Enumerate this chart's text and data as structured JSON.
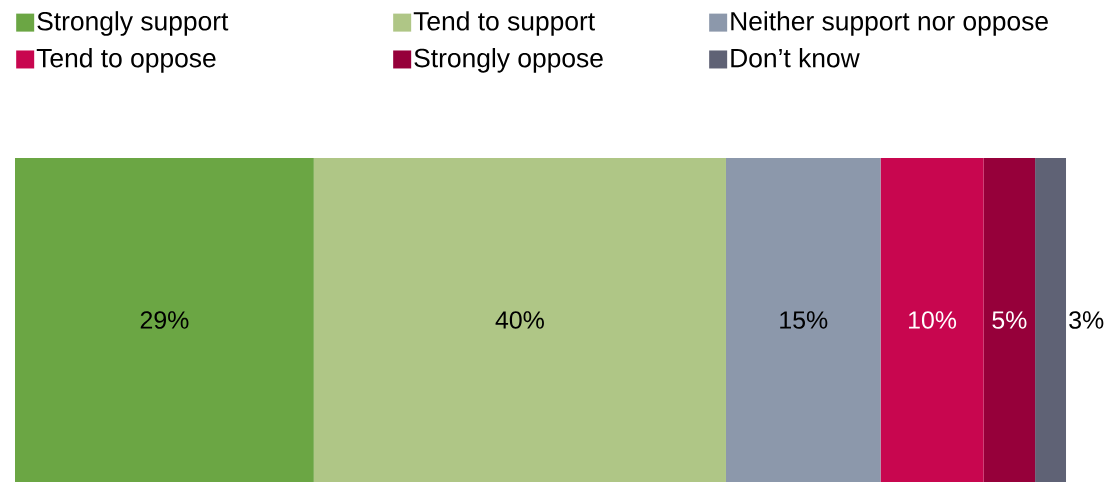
{
  "chart_data": {
    "type": "bar",
    "orientation": "horizontal",
    "stacked": true,
    "legend": "top left",
    "categories": [
      null
    ],
    "series": [
      {
        "name": "Strongly support",
        "color": "#6ba644",
        "values": [
          29
        ],
        "value_labels": [
          "29%"
        ]
      },
      {
        "name": "Tend to support",
        "color": "#afc686",
        "values": [
          40
        ],
        "value_labels": [
          "40%"
        ]
      },
      {
        "name": "Neither support nor oppose",
        "color": "#8c98ab",
        "values": [
          15
        ],
        "value_labels": [
          "15%"
        ]
      },
      {
        "name": "Tend to oppose",
        "color": "#c8064f",
        "values": [
          10
        ],
        "value_labels": [
          "10%"
        ]
      },
      {
        "name": "Strongly oppose",
        "color": "#96003a",
        "values": [
          5
        ],
        "value_labels": [
          "5%"
        ]
      },
      {
        "name": "Don’t know",
        "color": "#5f6275",
        "values": [
          3
        ],
        "value_labels": [
          "3%"
        ]
      }
    ]
  }
}
